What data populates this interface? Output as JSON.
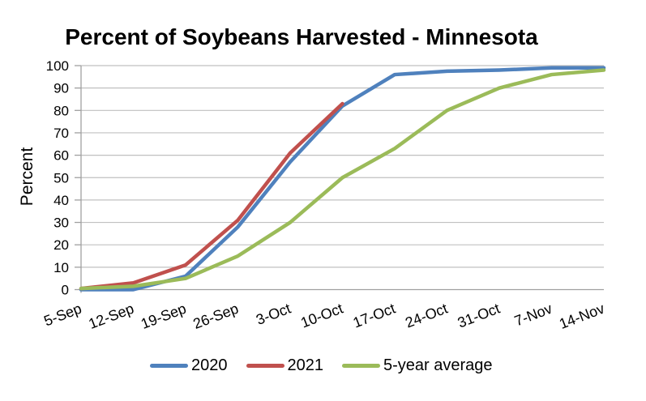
{
  "chart_data": {
    "type": "line",
    "title": "Percent of Soybeans Harvested - Minnesota",
    "xlabel": "",
    "ylabel": "Percent",
    "ylim": [
      0,
      100
    ],
    "y_ticks": [
      0,
      10,
      20,
      30,
      40,
      50,
      60,
      70,
      80,
      90,
      100
    ],
    "grid": "horizontal",
    "legend_position": "bottom",
    "categories": [
      "5-Sep",
      "12-Sep",
      "19-Sep",
      "26-Sep",
      "3-Oct",
      "10-Oct",
      "17-Oct",
      "24-Oct",
      "31-Oct",
      "7-Nov",
      "14-Nov"
    ],
    "series": [
      {
        "name": "2020",
        "color": "#4F81BD",
        "values": [
          0,
          0,
          6,
          28,
          57,
          82,
          96,
          97.5,
          98,
          99,
          99
        ]
      },
      {
        "name": "2021",
        "color": "#C0504D",
        "values": [
          0.5,
          3,
          11,
          31,
          61,
          83,
          null,
          null,
          null,
          null,
          null
        ]
      },
      {
        "name": "5-year average",
        "color": "#9BBB59",
        "values": [
          0.5,
          1.5,
          5,
          15,
          30,
          50,
          63,
          80,
          90,
          96,
          98
        ]
      }
    ]
  },
  "colors": {
    "grid": "#C0C0C0",
    "axis": "#A0A0A0",
    "text": "#000000"
  }
}
